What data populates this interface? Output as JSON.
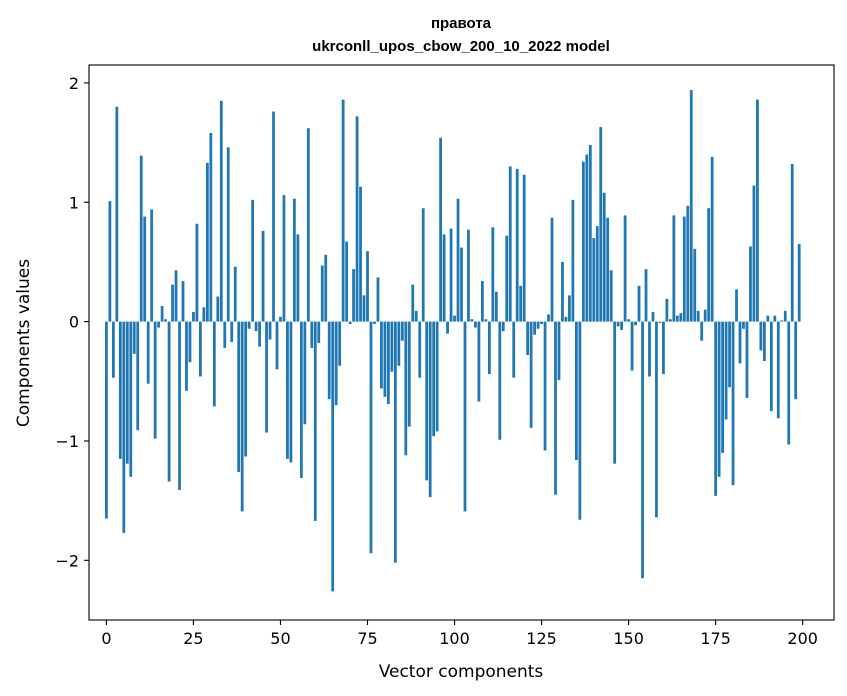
{
  "chart_data": {
    "type": "bar",
    "title_line1": "правота",
    "title_line2": "ukrconll_upos_cbow_200_10_2022 model",
    "xlabel": "Vector components",
    "ylabel": "Components values",
    "xlim": [
      -5,
      209
    ],
    "ylim": [
      -2.5,
      2.15
    ],
    "xticks": [
      0,
      25,
      50,
      75,
      100,
      125,
      150,
      175,
      200
    ],
    "xtick_labels": [
      "0",
      "25",
      "50",
      "75",
      "100",
      "125",
      "150",
      "175",
      "200"
    ],
    "yticks": [
      -2,
      -1,
      0,
      1,
      2
    ],
    "ytick_labels": [
      "−2",
      "−1",
      "0",
      "1",
      "2"
    ],
    "grid": false,
    "bar_color": "#1f77b4",
    "values": [
      -1.65,
      1.01,
      -0.47,
      1.8,
      -1.15,
      -1.77,
      -1.19,
      -1.3,
      -0.27,
      -0.91,
      1.39,
      0.88,
      -0.52,
      0.94,
      -0.98,
      -0.05,
      0.13,
      0.02,
      -1.34,
      0.31,
      0.43,
      -1.41,
      0.34,
      -0.58,
      -0.34,
      0.08,
      0.82,
      -0.46,
      0.12,
      1.33,
      1.58,
      -0.71,
      0.21,
      1.85,
      -0.22,
      1.46,
      -0.17,
      0.46,
      -1.26,
      -1.59,
      -1.13,
      -0.06,
      1.02,
      -0.08,
      -0.21,
      0.76,
      -0.93,
      -0.15,
      1.76,
      -0.4,
      0.04,
      1.06,
      -1.15,
      -1.18,
      1.03,
      0.73,
      -1.31,
      -0.86,
      1.62,
      -0.22,
      -1.67,
      -0.18,
      0.47,
      0.56,
      -0.65,
      -2.26,
      -0.7,
      -0.37,
      1.86,
      0.67,
      -0.02,
      0.44,
      1.72,
      1.13,
      0.22,
      0.59,
      -1.94,
      -0.02,
      0.37,
      -0.56,
      -0.63,
      -0.69,
      -0.42,
      -2.02,
      -0.37,
      -0.16,
      -1.12,
      -0.88,
      0.31,
      0.09,
      -0.47,
      0.95,
      -1.33,
      -1.47,
      -0.96,
      -0.92,
      1.54,
      0.73,
      -0.1,
      0.78,
      0.05,
      1.03,
      0.62,
      -1.59,
      0.77,
      0.02,
      -0.05,
      -0.67,
      0.34,
      0.02,
      -0.44,
      0.79,
      0.25,
      -0.99,
      -0.08,
      0.72,
      1.3,
      -0.47,
      1.28,
      0.3,
      1.23,
      -0.28,
      -0.89,
      -0.11,
      -0.06,
      -0.02,
      -1.08,
      0.06,
      0.87,
      -1.45,
      -0.49,
      0.5,
      0.04,
      0.22,
      1.02,
      -1.16,
      -1.66,
      1.34,
      1.4,
      1.48,
      0.7,
      0.8,
      1.63,
      1.08,
      0.87,
      0.43,
      -1.19,
      -0.04,
      -0.07,
      0.89,
      0.02,
      -0.41,
      -0.03,
      0.3,
      -2.15,
      0.44,
      -0.46,
      0.08,
      -1.64,
      -0.01,
      -0.44,
      0.19,
      0.02,
      0.89,
      0.05,
      0.07,
      0.88,
      0.97,
      1.94,
      0.61,
      0.09,
      -0.16,
      0.1,
      0.95,
      1.38,
      -1.46,
      -1.3,
      -1.1,
      -0.82,
      -0.55,
      -1.37,
      0.27,
      -0.35,
      -0.06,
      -0.64,
      0.63,
      1.14,
      1.86,
      -0.24,
      -0.33,
      0.05,
      -0.75,
      0.05,
      -0.81,
      0.01,
      0.09,
      -1.03,
      1.32,
      -0.65,
      0.65
    ]
  }
}
